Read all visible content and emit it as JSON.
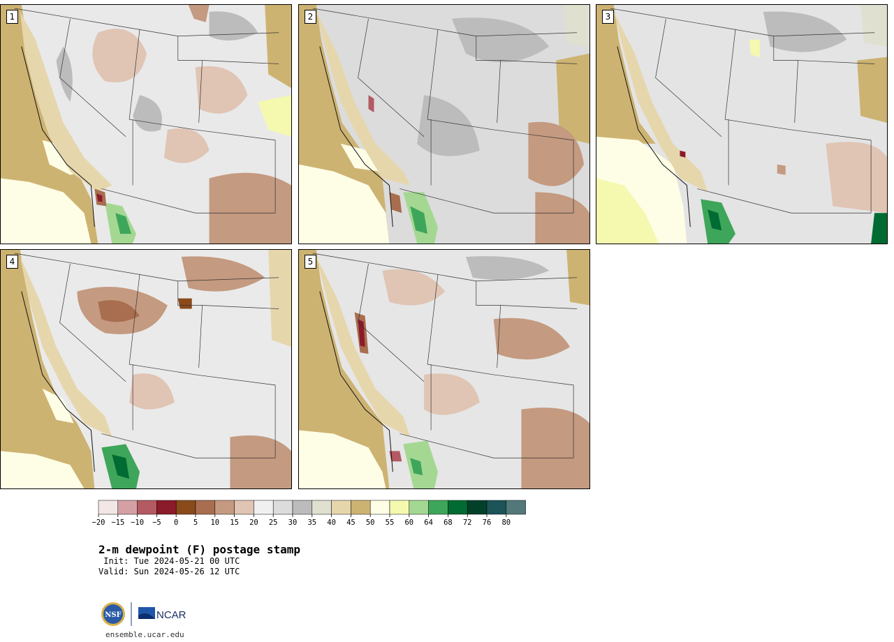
{
  "product": {
    "title": "2-m dewpoint (F) postage stamp",
    "init": " Init: Tue 2024-05-21 00 UTC",
    "valid": "Valid: Sun 2024-05-26 12 UTC",
    "site": "ensemble.ucar.edu",
    "logos": {
      "nsf": "NSF",
      "ncar": "NCAR"
    }
  },
  "members": [
    {
      "label": "1"
    },
    {
      "label": "2"
    },
    {
      "label": "3"
    },
    {
      "label": "4"
    },
    {
      "label": "5"
    }
  ],
  "colorbar": {
    "ticks": [
      "−20",
      "−15",
      "−10",
      "−5",
      "0",
      "5",
      "10",
      "15",
      "20",
      "25",
      "30",
      "35",
      "40",
      "45",
      "50",
      "55",
      "60",
      "64",
      "68",
      "72",
      "76",
      "80"
    ],
    "colors": [
      "#f2e6e6",
      "#d5a0a4",
      "#b35a63",
      "#8b1a2a",
      "#8a4a1a",
      "#a86e4f",
      "#c49a80",
      "#e0c4b4",
      "#f0f0f0",
      "#dcdcdc",
      "#bcbcbc",
      "#e0e0d0",
      "#e6d6ac",
      "#cdb372",
      "#fefee6",
      "#f5f9b0",
      "#a4d892",
      "#3ea65a",
      "#006b32",
      "#03402a",
      "#1c5458",
      "#52787a"
    ]
  }
}
